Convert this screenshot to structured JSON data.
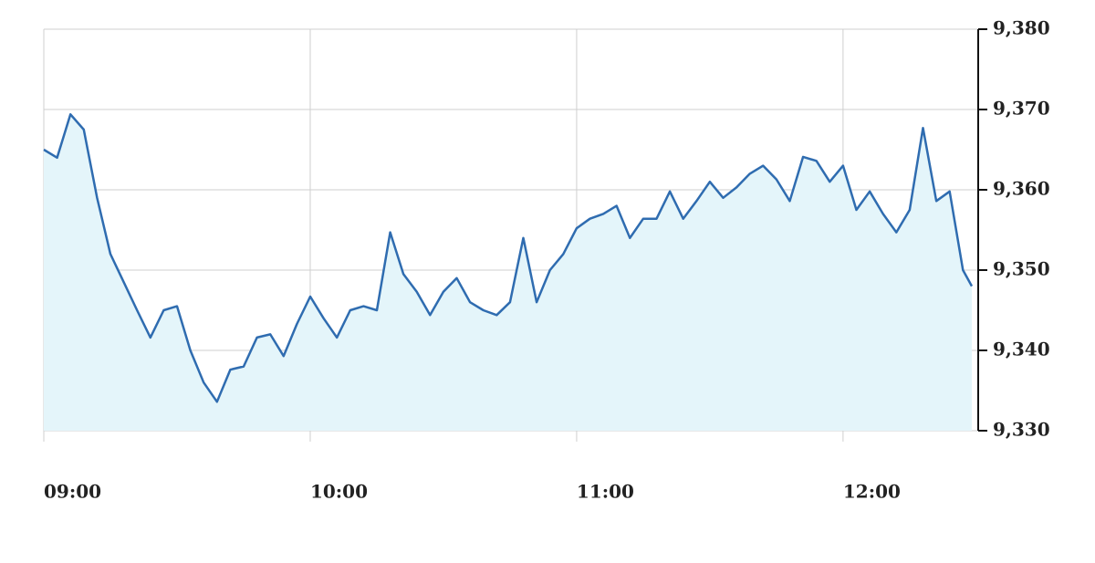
{
  "chart_data": {
    "type": "area",
    "x": [
      "09:00",
      "09:03",
      "09:06",
      "09:09",
      "09:12",
      "09:15",
      "09:18",
      "09:21",
      "09:24",
      "09:27",
      "09:30",
      "09:33",
      "09:36",
      "09:39",
      "09:42",
      "09:45",
      "09:48",
      "09:51",
      "09:54",
      "09:57",
      "10:00",
      "10:03",
      "10:06",
      "10:09",
      "10:12",
      "10:15",
      "10:18",
      "10:21",
      "10:24",
      "10:27",
      "10:30",
      "10:33",
      "10:36",
      "10:39",
      "10:42",
      "10:45",
      "10:48",
      "10:51",
      "10:54",
      "10:57",
      "11:00",
      "11:03",
      "11:06",
      "11:09",
      "11:12",
      "11:15",
      "11:18",
      "11:21",
      "11:24",
      "11:27",
      "11:30",
      "11:33",
      "11:36",
      "11:39",
      "11:42",
      "11:45",
      "11:48",
      "11:51",
      "11:54",
      "11:57",
      "12:00",
      "12:03",
      "12:06",
      "12:09",
      "12:12",
      "12:15",
      "12:18",
      "12:21",
      "12:24",
      "12:27",
      "12:29"
    ],
    "series": [
      {
        "color": "#2f6cb0",
        "fill": "#e4f5fa",
        "values": [
          9365,
          9364,
          9369.4,
          9367.5,
          9359,
          9352,
          9348.5,
          9345,
          9341.6,
          9345,
          9345.5,
          9340,
          9336,
          9333.6,
          9337.6,
          9338,
          9341.6,
          9342,
          9339.3,
          9343.3,
          9346.7,
          9344,
          9341.6,
          9345,
          9345.5,
          9345,
          9354.7,
          9349.5,
          9347.3,
          9344.4,
          9347.3,
          9349,
          9346,
          9345,
          9344.4,
          9346,
          9354,
          9346,
          9350,
          9352,
          9355.2,
          9356.4,
          9357,
          9358,
          9354,
          9356.4,
          9356.4,
          9359.8,
          9356.4,
          9358.6,
          9361,
          9359,
          9360.3,
          9362,
          9363,
          9361.3,
          9358.6,
          9364.1,
          9363.6,
          9361,
          9363,
          9357.5,
          9359.8,
          9357,
          9354.7,
          9357.5,
          9367.7,
          9358.6,
          9359.8,
          9350,
          9348
        ]
      }
    ],
    "xlim": [
      "09:00",
      "12:29"
    ],
    "xticks": [
      "09:00",
      "10:00",
      "11:00",
      "12:00"
    ],
    "ylim": [
      9330,
      9380
    ],
    "yticks": [
      {
        "value": 9330,
        "label": "9,330"
      },
      {
        "value": 9340,
        "label": "9,340"
      },
      {
        "value": 9350,
        "label": "9,350"
      },
      {
        "value": 9360,
        "label": "9,360"
      },
      {
        "value": 9370,
        "label": "9,370"
      },
      {
        "value": 9380,
        "label": "9,380"
      }
    ],
    "grid": true
  }
}
